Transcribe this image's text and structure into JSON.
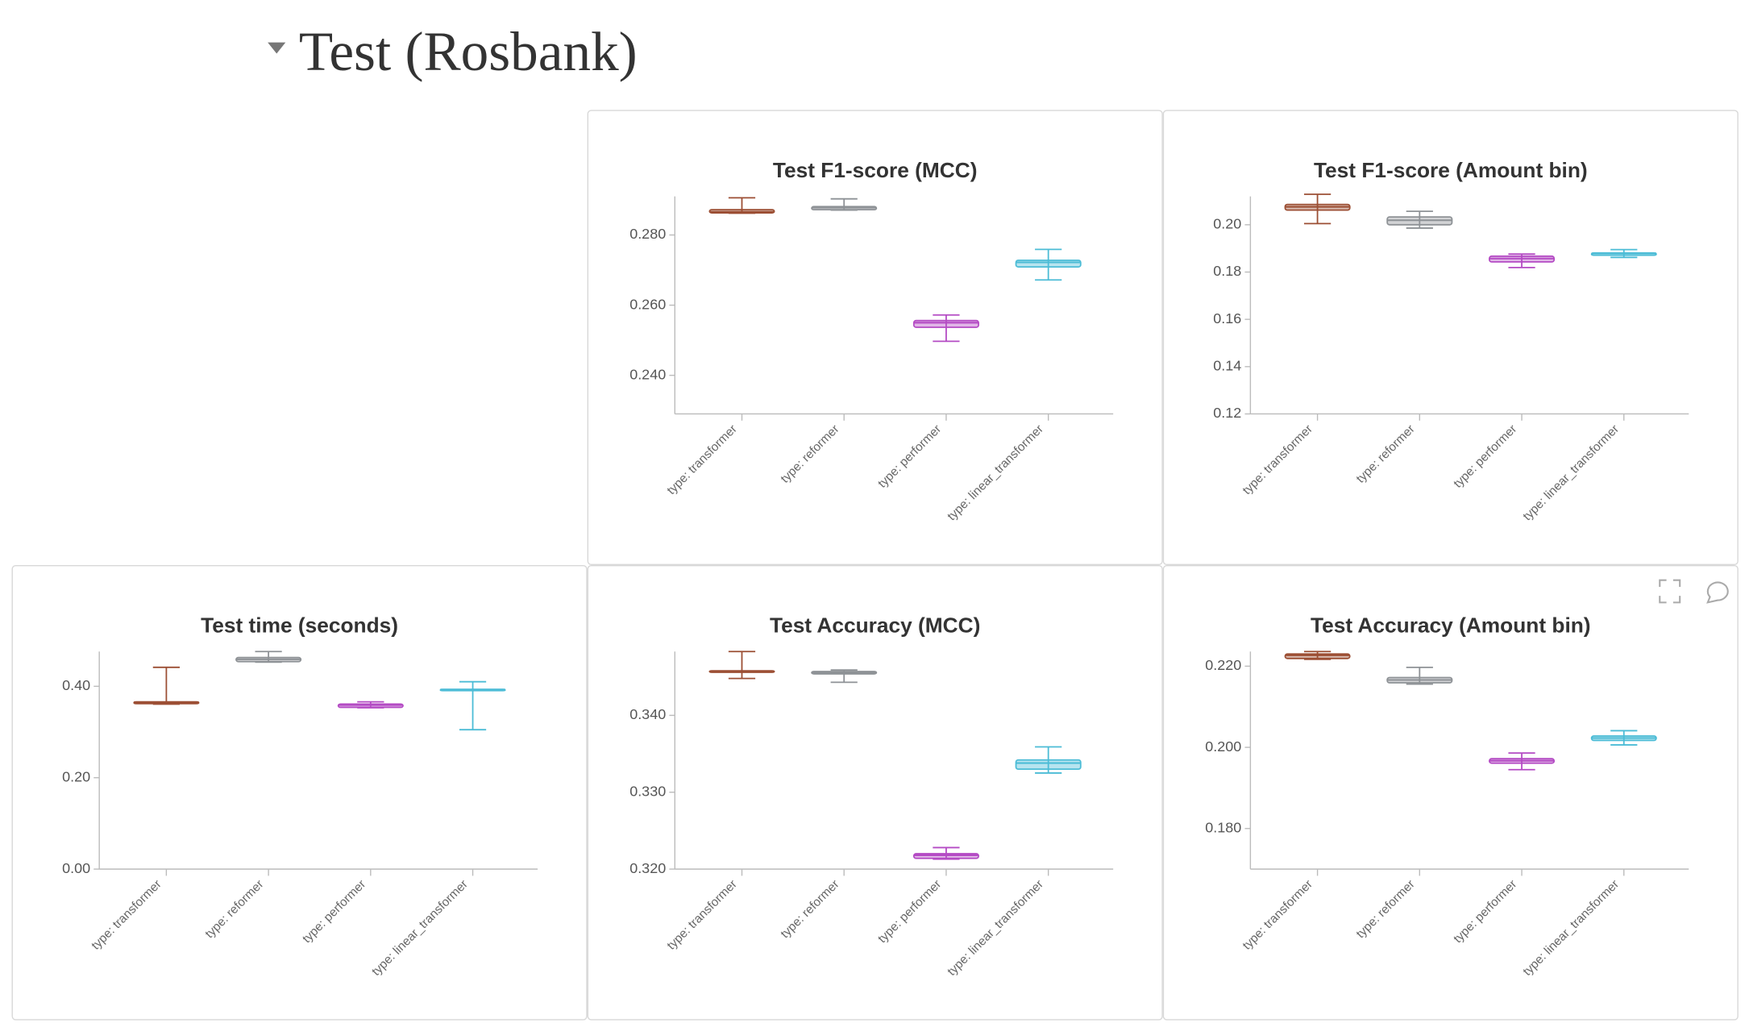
{
  "section_title": "Test (Rosbank)",
  "chart_data": [
    {
      "type": "box",
      "title": "Test F1-score (MCC)",
      "categories": [
        "type: transformer",
        "type: reformer",
        "type: performer",
        "type: linear_transformer"
      ],
      "colors": [
        "#9c4f34",
        "#8e9296",
        "#b44bc4",
        "#4cbcd6"
      ],
      "boxes": [
        {
          "min": 0.2862,
          "q1": 0.2863,
          "median": 0.2866,
          "q3": 0.2872,
          "max": 0.2906
        },
        {
          "min": 0.2871,
          "q1": 0.2872,
          "median": 0.2878,
          "q3": 0.2881,
          "max": 0.2903
        },
        {
          "min": 0.2497,
          "q1": 0.2537,
          "median": 0.255,
          "q3": 0.2556,
          "max": 0.2572
        },
        {
          "min": 0.2672,
          "q1": 0.2709,
          "median": 0.2722,
          "q3": 0.2728,
          "max": 0.2759
        }
      ],
      "ylim": [
        0.229,
        0.291
      ],
      "yticks": [
        {
          "value": 0.24,
          "label": "0.240"
        },
        {
          "value": 0.26,
          "label": "0.260"
        },
        {
          "value": 0.28,
          "label": "0.280"
        }
      ]
    },
    {
      "type": "box",
      "title": "Test F1-score (Amount bin)",
      "categories": [
        "type: transformer",
        "type: reformer",
        "type: performer",
        "type: linear_transformer"
      ],
      "colors": [
        "#9c4f34",
        "#8e9296",
        "#b44bc4",
        "#4cbcd6"
      ],
      "boxes": [
        {
          "min": 0.2005,
          "q1": 0.2062,
          "median": 0.2076,
          "q3": 0.2086,
          "max": 0.2129
        },
        {
          "min": 0.1986,
          "q1": 0.2,
          "median": 0.2019,
          "q3": 0.2033,
          "max": 0.2057
        },
        {
          "min": 0.1819,
          "q1": 0.1843,
          "median": 0.1857,
          "q3": 0.1867,
          "max": 0.1876
        },
        {
          "min": 0.1862,
          "q1": 0.1871,
          "median": 0.1879,
          "q3": 0.1881,
          "max": 0.1895
        }
      ],
      "ylim": [
        0.12,
        0.212
      ],
      "yticks": [
        0.12,
        0.14,
        0.16,
        0.18,
        {
          "value": 0.2,
          "label": "0.20"
        }
      ]
    },
    {
      "type": "box",
      "title": "Test time (seconds)",
      "categories": [
        "type: transformer",
        "type: reformer",
        "type: performer",
        "type: linear_transformer"
      ],
      "colors": [
        "#9c4f34",
        "#8e9296",
        "#b44bc4",
        "#4cbcd6"
      ],
      "boxes": [
        {
          "min": 0.361,
          "q1": 0.362,
          "median": 0.365,
          "q3": 0.366,
          "max": 0.4415
        },
        {
          "min": 0.453,
          "q1": 0.454,
          "median": 0.459,
          "q3": 0.463,
          "max": 0.476
        },
        {
          "min": 0.353,
          "q1": 0.354,
          "median": 0.359,
          "q3": 0.361,
          "max": 0.366
        },
        {
          "min": 0.305,
          "q1": 0.392,
          "median": 0.393,
          "q3": 0.393,
          "max": 0.41
        }
      ],
      "ylim": [
        0,
        0.476
      ],
      "yticks": [
        {
          "value": 0,
          "label": "0.00"
        },
        {
          "value": 0.2,
          "label": "0.20"
        },
        {
          "value": 0.4,
          "label": "0.40"
        }
      ]
    },
    {
      "type": "box",
      "title": "Test Accuracy (MCC)",
      "categories": [
        "type: transformer",
        "type: reformer",
        "type: performer",
        "type: linear_transformer"
      ],
      "colors": [
        "#9c4f34",
        "#8e9296",
        "#b44bc4",
        "#4cbcd6"
      ],
      "boxes": [
        {
          "min": 0.3448,
          "q1": 0.3456,
          "median": 0.3457,
          "q3": 0.3458,
          "max": 0.3483
        },
        {
          "min": 0.3443,
          "q1": 0.3454,
          "median": 0.3456,
          "q3": 0.3457,
          "max": 0.3459
        },
        {
          "min": 0.3213,
          "q1": 0.3214,
          "median": 0.3218,
          "q3": 0.322,
          "max": 0.3228
        },
        {
          "min": 0.3325,
          "q1": 0.333,
          "median": 0.3338,
          "q3": 0.3342,
          "max": 0.3359
        }
      ],
      "ylim": [
        0.32,
        0.3483
      ],
      "yticks": [
        {
          "value": 0.32,
          "label": "0.320"
        },
        {
          "value": 0.33,
          "label": "0.330"
        },
        {
          "value": 0.34,
          "label": "0.340"
        }
      ]
    },
    {
      "type": "box",
      "title": "Test Accuracy (Amount bin)",
      "categories": [
        "type: transformer",
        "type: reformer",
        "type: performer",
        "type: linear_transformer"
      ],
      "colors": [
        "#9c4f34",
        "#8e9296",
        "#b44bc4",
        "#4cbcd6"
      ],
      "boxes": [
        {
          "min": 0.2217,
          "q1": 0.2219,
          "median": 0.2227,
          "q3": 0.223,
          "max": 0.2236
        },
        {
          "min": 0.2156,
          "q1": 0.2159,
          "median": 0.2166,
          "q3": 0.2172,
          "max": 0.2197
        },
        {
          "min": 0.1945,
          "q1": 0.1961,
          "median": 0.1967,
          "q3": 0.1972,
          "max": 0.1986
        },
        {
          "min": 0.2006,
          "q1": 0.2017,
          "median": 0.2023,
          "q3": 0.2028,
          "max": 0.2041
        }
      ],
      "ylim": [
        0.17,
        0.2236
      ],
      "yticks": [
        {
          "value": 0.18,
          "label": "0.180"
        },
        {
          "value": 0.2,
          "label": "0.200"
        },
        {
          "value": 0.22,
          "label": "0.220"
        }
      ]
    }
  ]
}
